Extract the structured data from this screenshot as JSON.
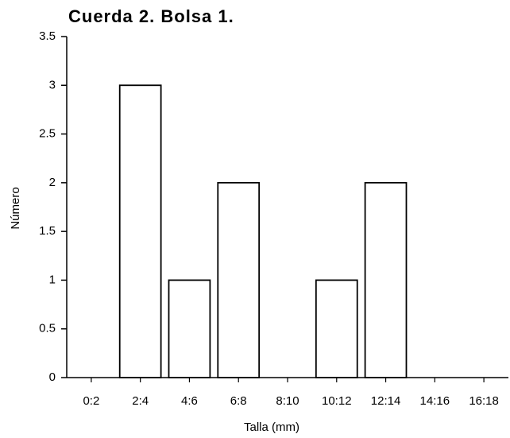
{
  "chart_data": {
    "type": "bar",
    "title": "Cuerda 2. Bolsa 1.",
    "x_label": "Talla (mm)",
    "y_label": "Número",
    "categories": [
      "0:2",
      "2:4",
      "4:6",
      "6:8",
      "8:10",
      "10:12",
      "12:14",
      "14:16",
      "16:18"
    ],
    "values": [
      0,
      3,
      1,
      2,
      0,
      1,
      2,
      0,
      0
    ],
    "color": "#ffffff",
    "ylim": [
      0,
      3.5
    ],
    "yticks": [
      0,
      0.5,
      1,
      1.5,
      2,
      2.5,
      3,
      3.5
    ],
    "grid": false
  }
}
